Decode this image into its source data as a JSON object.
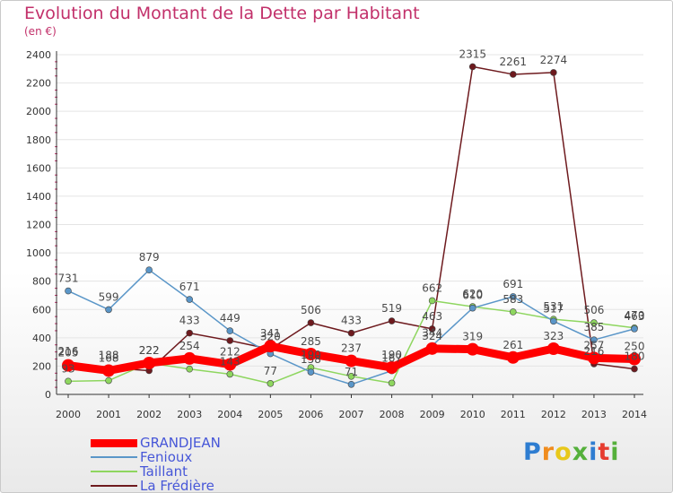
{
  "header": {
    "title": "Evolution du Montant de la Dette par Habitant",
    "subtitle": "(en €)"
  },
  "logo": {
    "text": "Proxiti",
    "colors": [
      "#2e7dd1",
      "#f08c1e",
      "#e8c81a",
      "#55b03b",
      "#2e7dd1",
      "#e63c2f",
      "#55b03b"
    ]
  },
  "chart_data": {
    "type": "line",
    "x": [
      "2000",
      "2001",
      "2002",
      "2003",
      "2004",
      "2005",
      "2006",
      "2007",
      "2008",
      "2009",
      "2010",
      "2011",
      "2012",
      "2013",
      "2014"
    ],
    "ylim": [
      0,
      2400
    ],
    "yticks": [
      0,
      200,
      400,
      600,
      800,
      1000,
      1200,
      1400,
      1600,
      1800,
      2000,
      2200,
      2400
    ],
    "legend_position": "bottom-left",
    "series": [
      {
        "name": "GRANDJEAN",
        "color": "#ff0000",
        "values": [
          205,
          168,
          222,
          254,
          212,
          341,
          285,
          237,
          190,
          324,
          319,
          261,
          323,
          257,
          250
        ],
        "labels": [
          "205",
          "168",
          "222",
          "254",
          "212",
          "341",
          "285",
          "237",
          "190",
          "324",
          "319",
          "261",
          "323",
          "257",
          "250"
        ]
      },
      {
        "name": "Fenioux",
        "color": "#5a96c8",
        "values": [
          731,
          599,
          879,
          671,
          449,
          288,
          158,
          71,
          167,
          344,
          610,
          691,
          517,
          385,
          463
        ],
        "labels": [
          "731",
          "599",
          "879",
          "671",
          "449",
          "",
          "158",
          "71",
          "167",
          "344",
          "610",
          "691",
          "517",
          "385",
          "463"
        ]
      },
      {
        "name": "Taillant",
        "color": "#8ed65f",
        "values": [
          93,
          98,
          222,
          179,
          143,
          77,
          190,
          128,
          80,
          662,
          620,
          583,
          531,
          506,
          470
        ],
        "labels": [
          "93",
          "",
          "222",
          "",
          "143",
          "77",
          "190",
          "",
          "",
          "662",
          "620",
          "583",
          "531",
          "506",
          "470"
        ]
      },
      {
        "name": "La Frédière",
        "color": "#6e1a1e",
        "values": [
          216,
          188,
          168,
          433,
          380,
          320,
          506,
          433,
          519,
          463,
          2315,
          2261,
          2274,
          216,
          180
        ],
        "labels": [
          "216",
          "188",
          "",
          "433",
          "",
          "320",
          "506",
          "433",
          "519",
          "463",
          "2315",
          "2261",
          "2274",
          "216",
          "180"
        ]
      }
    ]
  }
}
